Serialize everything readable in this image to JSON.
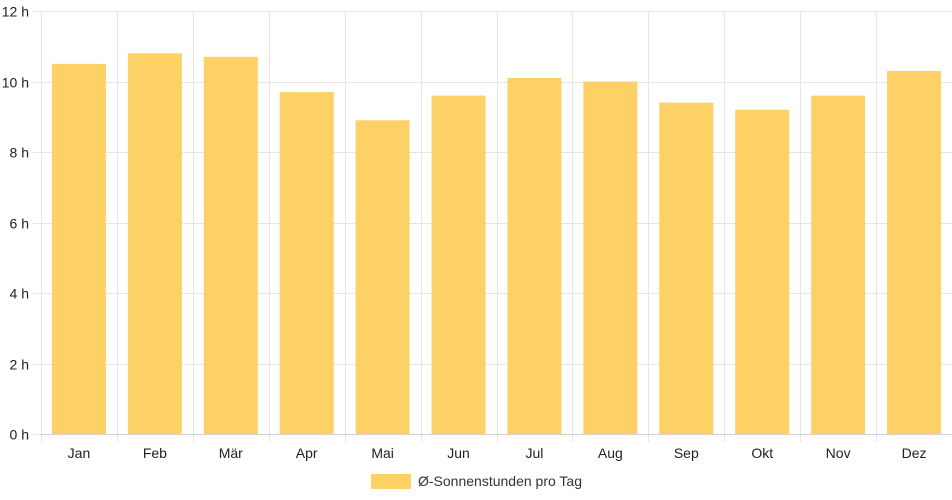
{
  "chart_data": {
    "type": "bar",
    "categories": [
      "Jan",
      "Feb",
      "Mär",
      "Apr",
      "Mai",
      "Jun",
      "Jul",
      "Aug",
      "Sep",
      "Okt",
      "Nov",
      "Dez"
    ],
    "series": [
      {
        "name": "Ø-Sonnenstunden pro Tag",
        "values": [
          10.5,
          10.8,
          10.7,
          9.7,
          8.9,
          9.6,
          10.1,
          10.0,
          9.4,
          9.2,
          9.6,
          10.3
        ]
      }
    ],
    "y_ticks": [
      "0 h",
      "2 h",
      "4 h",
      "6 h",
      "8 h",
      "10 h",
      "12 h"
    ],
    "ylim": [
      0,
      12
    ],
    "grid": true,
    "legend_position": "bottom-center",
    "bar_color": "#fdd166"
  }
}
